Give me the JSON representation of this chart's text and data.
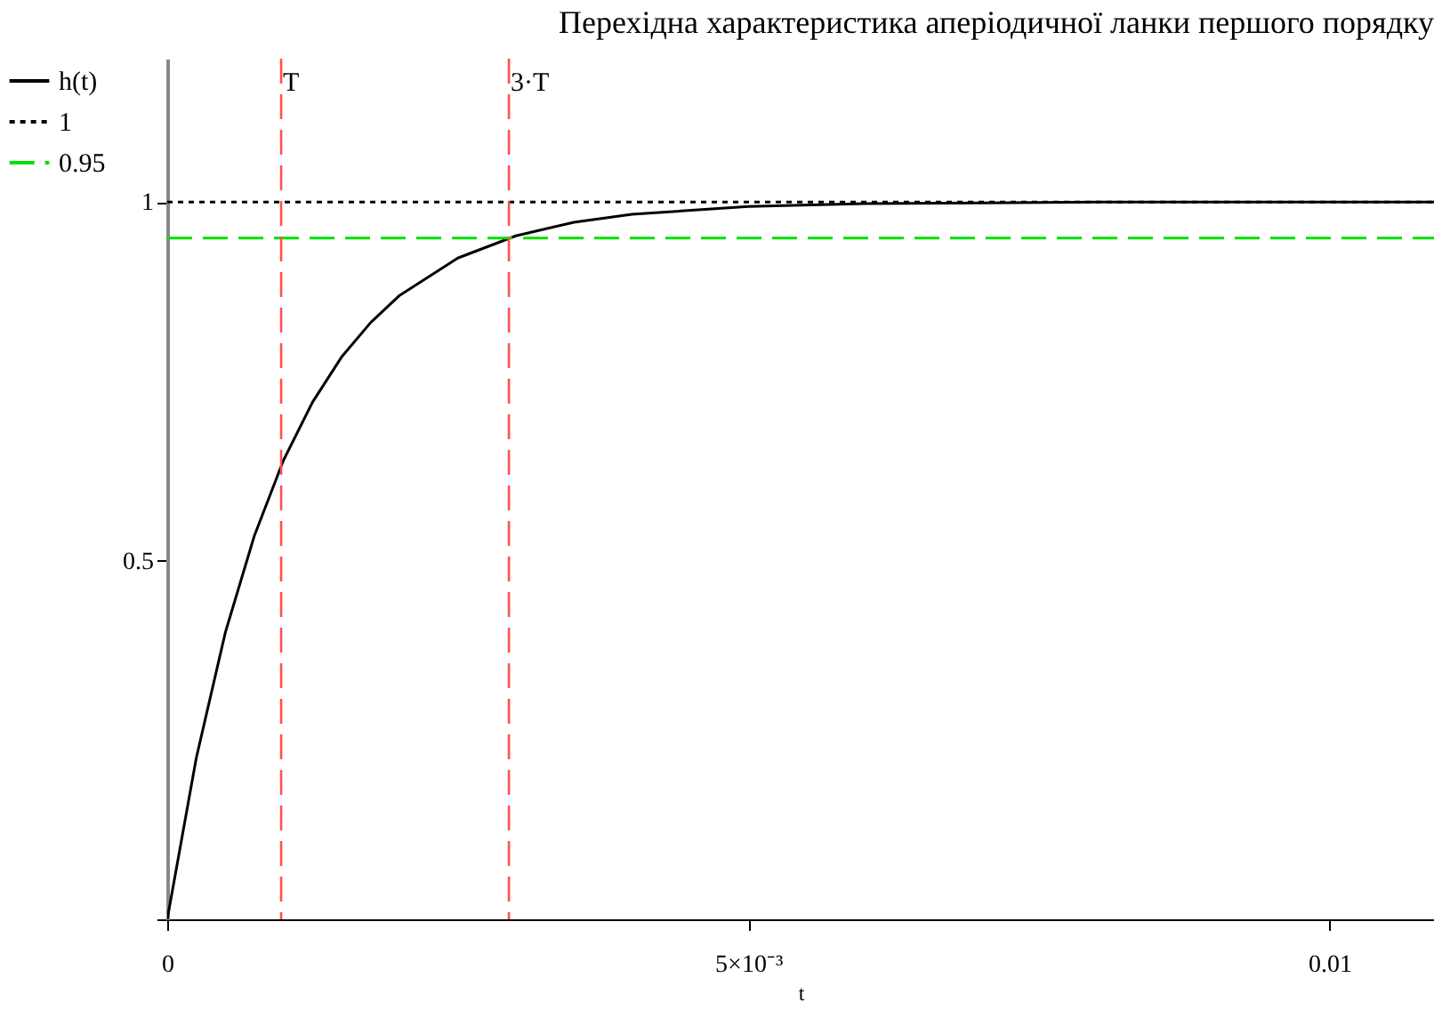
{
  "chart_data": {
    "type": "line",
    "title": "Перехідна характеристика аперіодичної ланки першого порядку",
    "xlabel": "t",
    "xlim": [
      0,
      0.0109
    ],
    "ylim": [
      0,
      1.2
    ],
    "xticks": [
      0,
      {
        "value": 0.005,
        "label": "5×10⁻³"
      },
      0.01
    ],
    "yticks": [
      {
        "value": 0,
        "label": null
      },
      0.5,
      1
    ],
    "grid": false,
    "legend": "left",
    "marker": "none",
    "series": [
      {
        "name": "h(t)",
        "color": "#000000",
        "line_style": "solid",
        "x": [
          0,
          0.00025,
          0.0005,
          0.00075,
          0.001,
          0.00125,
          0.0015,
          0.00175,
          0.002,
          0.0025,
          0.003,
          0.0035,
          0.004,
          0.005,
          0.006,
          0.007,
          0.008,
          0.009,
          0.01,
          0.0109
        ],
        "values": [
          0,
          0.225,
          0.4,
          0.535,
          0.64,
          0.721,
          0.784,
          0.832,
          0.87,
          0.922,
          0.953,
          0.972,
          0.983,
          0.994,
          0.998,
          0.999,
          1,
          1,
          1,
          1
        ]
      },
      {
        "name": "1",
        "color": "#000000",
        "line_style": "dotted",
        "x": [
          0,
          0.0109
        ],
        "values": [
          1,
          1
        ]
      },
      {
        "name": "0.95",
        "color": "#00e000",
        "line_style": "dashed",
        "x": [
          0,
          0.0109
        ],
        "values": [
          0.95,
          0.95
        ]
      }
    ],
    "ref_lines": [
      {
        "axis": "x",
        "value": 0.00098,
        "label": "T",
        "color": "#ff5050",
        "line_style": "dashed"
      },
      {
        "axis": "x",
        "value": 0.00294,
        "label": "3·T",
        "color": "#ff5050",
        "line_style": "dashed"
      }
    ]
  }
}
